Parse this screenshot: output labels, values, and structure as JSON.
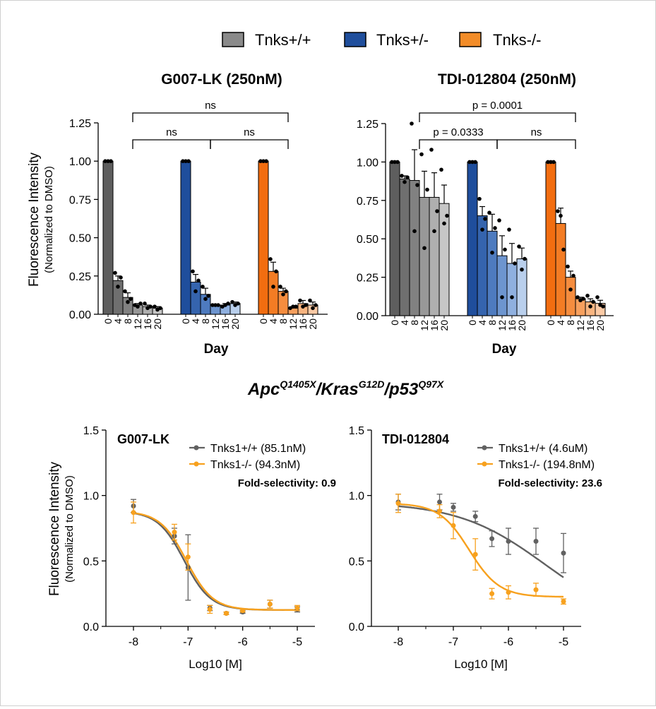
{
  "legend": [
    {
      "label": "Tnks+/+",
      "color": "#8a8a8a"
    },
    {
      "label": "Tnks+/-",
      "color": "#1f4e9c"
    },
    {
      "label": "Tnks-/-",
      "color": "#f28c28"
    }
  ],
  "genotype_title": {
    "base": "Apc",
    "sup1": "Q1405X",
    "mid1": "/Kras",
    "sup2": "G12D",
    "mid2": "/p53",
    "sup3": "Q97X"
  },
  "chart_data": [
    {
      "type": "bar",
      "title": "G007-LK (250nM)",
      "xlabel": "Day",
      "ylabel": "Fluorescence Intensity",
      "ylabel2": "(Normalized to DMSO)",
      "ylim": [
        0,
        1.25
      ],
      "yticks": [
        "0.00",
        "0.25",
        "0.50",
        "0.75",
        "1.00",
        "1.25"
      ],
      "categories": [
        "0",
        "4",
        "8",
        "12",
        "16",
        "20"
      ],
      "series": [
        {
          "name": "Tnks+/+",
          "values": [
            1.0,
            0.22,
            0.11,
            0.06,
            0.05,
            0.04
          ],
          "errors": [
            0,
            0.03,
            0.03,
            0.01,
            0.01,
            0.01
          ],
          "colors": [
            "#5e5e5e",
            "#6f6f6f",
            "#818181",
            "#989898",
            "#afafaf",
            "#c6c6c6"
          ],
          "points": [
            [
              1.0,
              1.0,
              1.0
            ],
            [
              0.27,
              0.18,
              0.24
            ],
            [
              0.15,
              0.08,
              0.1
            ],
            [
              0.06,
              0.05,
              0.07
            ],
            [
              0.07,
              0.04,
              0.05
            ],
            [
              0.05,
              0.03,
              0.04
            ]
          ]
        },
        {
          "name": "Tnks+/-",
          "values": [
            1.0,
            0.21,
            0.13,
            0.06,
            0.06,
            0.07
          ],
          "errors": [
            0,
            0.05,
            0.04,
            0.005,
            0.01,
            0.01
          ],
          "colors": [
            "#1f4e9c",
            "#3564ae",
            "#4e7bbf",
            "#6d95cf",
            "#8fb0df",
            "#b9cfec"
          ],
          "points": [
            [
              1.0,
              1.0,
              1.0
            ],
            [
              0.28,
              0.15,
              0.22
            ],
            [
              0.18,
              0.1,
              0.12
            ],
            [
              0.06,
              0.06,
              0.06
            ],
            [
              0.05,
              0.06,
              0.07
            ],
            [
              0.08,
              0.06,
              0.07
            ]
          ]
        },
        {
          "name": "Tnks-/-",
          "values": [
            1.0,
            0.28,
            0.15,
            0.04,
            0.07,
            0.06
          ],
          "errors": [
            0,
            0.06,
            0.02,
            0.005,
            0.02,
            0.02
          ],
          "colors": [
            "#f26d10",
            "#f37c24",
            "#f58d3f",
            "#f7a05e",
            "#f9b580",
            "#fbcaa5"
          ],
          "points": [
            [
              1.0,
              1.0,
              1.0
            ],
            [
              0.36,
              0.18,
              0.28
            ],
            [
              0.18,
              0.13,
              0.15
            ],
            [
              0.04,
              0.05,
              0.05
            ],
            [
              0.09,
              0.05,
              0.06
            ],
            [
              0.09,
              0.04,
              0.06
            ]
          ]
        }
      ],
      "comparisons": [
        {
          "label": "ns",
          "from": "Tnks+/+",
          "to": "Tnks-/-",
          "level": 2
        },
        {
          "label": "ns",
          "from": "Tnks+/+",
          "to": "Tnks+/-",
          "level": 1
        },
        {
          "label": "ns",
          "from": "Tnks+/-",
          "to": "Tnks-/-",
          "level": 1
        }
      ]
    },
    {
      "type": "bar",
      "title": "TDI-012804 (250nM)",
      "xlabel": "Day",
      "ylim": [
        0,
        1.25
      ],
      "yticks": [
        "0.00",
        "0.25",
        "0.50",
        "0.75",
        "1.00",
        "1.25"
      ],
      "categories": [
        "0",
        "4",
        "8",
        "12",
        "16",
        "20"
      ],
      "series": [
        {
          "name": "Tnks+/+",
          "values": [
            1.0,
            0.89,
            0.88,
            0.77,
            0.77,
            0.73
          ],
          "errors": [
            0,
            0.02,
            0.2,
            0.17,
            0.16,
            0.12
          ],
          "colors": [
            "#5e5e5e",
            "#6f6f6f",
            "#818181",
            "#989898",
            "#afafaf",
            "#c6c6c6"
          ],
          "points": [
            [
              1.0,
              1.0,
              1.0
            ],
            [
              0.91,
              0.87,
              0.9
            ],
            [
              1.25,
              0.55,
              0.85
            ],
            [
              1.05,
              0.44,
              0.82
            ],
            [
              1.08,
              0.55,
              0.68
            ],
            [
              0.95,
              0.6,
              0.65
            ]
          ]
        },
        {
          "name": "Tnks+/-",
          "values": [
            1.0,
            0.65,
            0.55,
            0.39,
            0.34,
            0.37
          ],
          "errors": [
            0,
            0.06,
            0.11,
            0.13,
            0.13,
            0.07
          ],
          "colors": [
            "#1f4e9c",
            "#3564ae",
            "#4e7bbf",
            "#6d95cf",
            "#8fb0df",
            "#b9cfec"
          ],
          "points": [
            [
              1.0,
              1.0,
              1.0
            ],
            [
              0.76,
              0.56,
              0.63
            ],
            [
              0.67,
              0.41,
              0.57
            ],
            [
              0.62,
              0.12,
              0.43
            ],
            [
              0.56,
              0.12,
              0.34
            ],
            [
              0.45,
              0.3,
              0.37
            ]
          ]
        },
        {
          "name": "Tnks-/-",
          "values": [
            1.0,
            0.6,
            0.25,
            0.11,
            0.09,
            0.08
          ],
          "errors": [
            0,
            0.1,
            0.04,
            0.01,
            0.02,
            0.02
          ],
          "colors": [
            "#f26d10",
            "#f37c24",
            "#f58d3f",
            "#f7a05e",
            "#f9b580",
            "#fbcaa5"
          ],
          "points": [
            [
              1.0,
              1.0,
              1.0
            ],
            [
              0.68,
              0.65,
              0.43
            ],
            [
              0.32,
              0.17,
              0.26
            ],
            [
              0.12,
              0.1,
              0.11
            ],
            [
              0.13,
              0.06,
              0.09
            ],
            [
              0.12,
              0.07,
              0.06
            ]
          ]
        }
      ],
      "comparisons": [
        {
          "label": "p = 0.0001",
          "from": "Tnks+/+",
          "to": "Tnks-/-",
          "level": 2
        },
        {
          "label": "p = 0.0333",
          "from": "Tnks+/+",
          "to": "Tnks+/-",
          "level": 1
        },
        {
          "label": "ns",
          "from": "Tnks+/-",
          "to": "Tnks-/-",
          "level": 1
        }
      ]
    },
    {
      "type": "line",
      "title": "G007-LK",
      "xlabel": "Log10 [M]",
      "ylabel": "Fluorescence Intensity",
      "ylabel2": "(Normalized to DMSO)",
      "xlim": [
        -8.5,
        -4.75
      ],
      "ylim": [
        0,
        1.5
      ],
      "xticks": [
        -8,
        -7,
        -6,
        -5
      ],
      "xticklabels": [
        "-8",
        "-7",
        "-6",
        "-5"
      ],
      "yticks": [
        0,
        0.5,
        1.0,
        1.5
      ],
      "yticklabels": [
        "0.0",
        "0.5",
        "1.0",
        "1.5"
      ],
      "annotation": "Fold-selectivity: 0.9",
      "series": [
        {
          "name": "Tnks1+/+ (85.1nM)",
          "color": "#616161",
          "x": [
            -8,
            -7.25,
            -7,
            -6.6,
            -6.3,
            -6,
            -5.5,
            -5
          ],
          "y": [
            0.92,
            0.69,
            0.45,
            0.14,
            0.1,
            0.11,
            0.17,
            0.13
          ],
          "err": [
            0.05,
            0.06,
            0.25,
            0.02,
            0.01,
            0.01,
            0.03,
            0.02
          ],
          "fit": {
            "top": 0.88,
            "bottom": 0.125,
            "logec50": -7.07,
            "hill": 1.8
          }
        },
        {
          "name": "Tnks1-/- (94.3nM)",
          "color": "#f7a11e",
          "x": [
            -8,
            -7.25,
            -7,
            -6.6,
            -6.3,
            -6,
            -5.5,
            -5
          ],
          "y": [
            0.87,
            0.72,
            0.53,
            0.13,
            0.1,
            0.12,
            0.17,
            0.14
          ],
          "err": [
            0.08,
            0.06,
            0.1,
            0.03,
            0.01,
            0.01,
            0.03,
            0.02
          ],
          "fit": {
            "top": 0.88,
            "bottom": 0.125,
            "logec50": -7.03,
            "hill": 1.8
          }
        }
      ]
    },
    {
      "type": "line",
      "title": "TDI-012804",
      "xlabel": "Log10 [M]",
      "xlim": [
        -8.5,
        -4.75
      ],
      "ylim": [
        0,
        1.5
      ],
      "xticks": [
        -8,
        -7,
        -6,
        -5
      ],
      "xticklabels": [
        "-8",
        "-7",
        "-6",
        "-5"
      ],
      "yticks": [
        0,
        0.5,
        1.0,
        1.5
      ],
      "yticklabels": [
        "0.0",
        "0.5",
        "1.0",
        "1.5"
      ],
      "annotation": "Fold-selectivity: 23.6",
      "series": [
        {
          "name": "Tnks1+/+ (4.6uM)",
          "color": "#616161",
          "x": [
            -8,
            -7.25,
            -7,
            -6.6,
            -6.3,
            -6,
            -5.5,
            -5
          ],
          "y": [
            0.95,
            0.95,
            0.91,
            0.84,
            0.67,
            0.65,
            0.65,
            0.56
          ],
          "err": [
            0.06,
            0.06,
            0.03,
            0.04,
            0.06,
            0.1,
            0.1,
            0.15
          ],
          "fit": {
            "top": 0.95,
            "bottom": 0.0,
            "logec50": -5.34,
            "hill": 0.55
          }
        },
        {
          "name": "Tnks1-/- (194.8nM)",
          "color": "#f7a11e",
          "x": [
            -8,
            -7.25,
            -7,
            -6.6,
            -6.3,
            -6,
            -5.5,
            -5
          ],
          "y": [
            0.94,
            0.88,
            0.77,
            0.55,
            0.25,
            0.26,
            0.28,
            0.19
          ],
          "err": [
            0.07,
            0.05,
            0.1,
            0.12,
            0.04,
            0.05,
            0.05,
            0.02
          ],
          "fit": {
            "top": 0.94,
            "bottom": 0.225,
            "logec50": -6.71,
            "hill": 1.6
          }
        }
      ]
    }
  ]
}
